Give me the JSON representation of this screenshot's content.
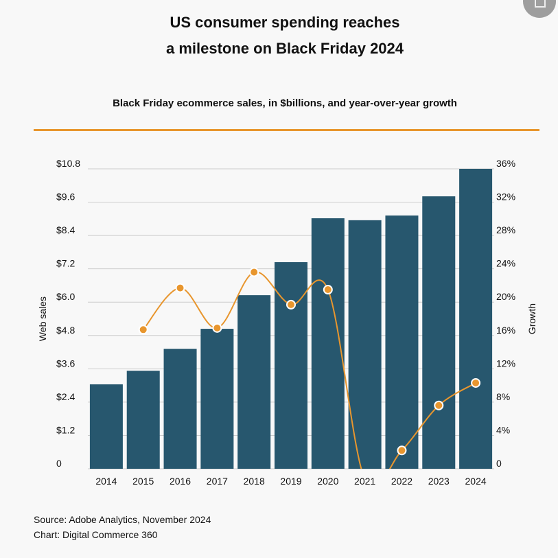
{
  "header": {
    "title_line1": "US consumer spending reaches",
    "title_line2": "a milestone on Black Friday 2024",
    "subtitle": "Black Friday ecommerce sales, in $billions, and year-over-year growth"
  },
  "footer": {
    "source": "Source: Adobe Analytics, November 2024",
    "chart_credit": "Chart: Digital Commerce 360"
  },
  "chart_data": {
    "type": "bar+line",
    "categories": [
      "2014",
      "2015",
      "2016",
      "2017",
      "2018",
      "2019",
      "2020",
      "2021",
      "2022",
      "2023",
      "2024"
    ],
    "series": [
      {
        "name": "Web sales",
        "type": "bar",
        "axis": "left",
        "values": [
          3.04,
          3.53,
          4.32,
          5.04,
          6.25,
          7.44,
          9.02,
          8.95,
          9.12,
          9.81,
          10.8
        ]
      },
      {
        "name": "Growth",
        "type": "line",
        "axis": "right",
        "values": [
          null,
          16.7,
          21.7,
          16.9,
          23.6,
          19.7,
          21.5,
          -1.3,
          2.2,
          7.6,
          10.3
        ]
      }
    ],
    "ylabel": "Web sales",
    "y2label": "Growth",
    "ylim": [
      0,
      10.8
    ],
    "y2lim": [
      0,
      36
    ],
    "yticks": [
      "0",
      "$1.2",
      "$2.4",
      "$3.6",
      "$4.8",
      "$6.0",
      "$7.2",
      "$8.4",
      "$9.6",
      "$10.8"
    ],
    "y2ticks": [
      "0",
      "4%",
      "8%",
      "12%",
      "16%",
      "20%",
      "24%",
      "28%",
      "32%",
      "36%"
    ],
    "grid": true,
    "colors": {
      "bar": "#27576e",
      "line": "#e8962e",
      "grid": "#cccccc",
      "rule": "#e8962e"
    }
  }
}
